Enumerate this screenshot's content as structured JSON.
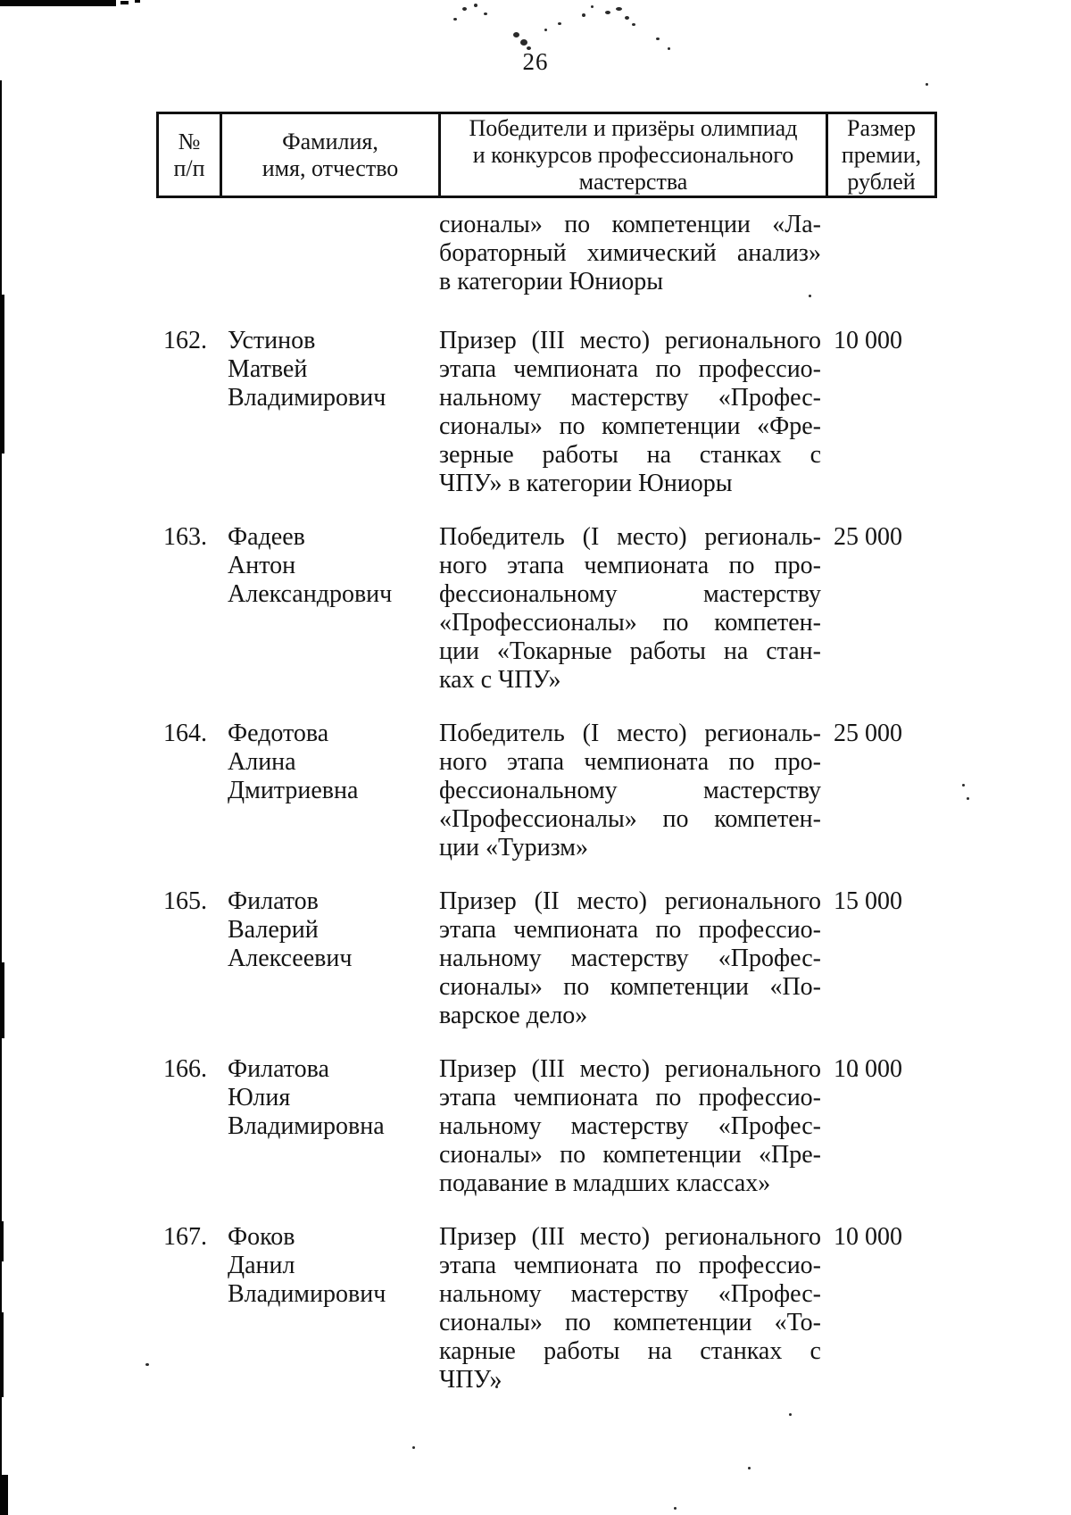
{
  "page": {
    "number": "26"
  },
  "colors": {
    "ink": "#141414",
    "paper": "#ffffff"
  },
  "table": {
    "header": {
      "col1_lines": [
        "№",
        "п/п"
      ],
      "col2_lines": [
        "Фамилия,",
        "имя, отчество"
      ],
      "col3_lines": [
        "Победители и призёры олимпиад",
        "и конкурсов профессионального",
        "мастерства"
      ],
      "col4_lines": [
        "Размер",
        "премии,",
        "рублей"
      ]
    },
    "carryover_lines": [
      "сионалы» по компетенции «Ла-",
      "бораторный химический анализ»",
      "в категории Юниоры"
    ],
    "rows": [
      {
        "num": "162.",
        "name_lines": [
          "Устинов",
          "Матвей",
          "Владимирович"
        ],
        "desc_lines": [
          "Призер (III место) регионального",
          "этапа чемпионата по профессио-",
          "нальному мастерству «Профес-",
          "сионалы» по компетенции «Фре-",
          "зерные работы на станках с",
          "ЧПУ» в категории Юниоры"
        ],
        "amount": "10 000"
      },
      {
        "num": "163.",
        "name_lines": [
          "Фадеев",
          "Антон",
          "Александрович"
        ],
        "desc_lines": [
          "Победитель (I место) региональ-",
          "ного этапа чемпионата по про-",
          "фессиональному мастерству",
          "«Профессионалы» по компетен-",
          "ции «Токарные работы на стан-",
          "ках с ЧПУ»"
        ],
        "amount": "25 000"
      },
      {
        "num": "164.",
        "name_lines": [
          "Федотова",
          "Алина",
          "Дмитриевна"
        ],
        "desc_lines": [
          "Победитель (I место) региональ-",
          "ного этапа чемпионата по про-",
          "фессиональному мастерству",
          "«Профессионалы» по компетен-",
          "ции «Туризм»"
        ],
        "amount": "25 000"
      },
      {
        "num": "165.",
        "name_lines": [
          "Филатов",
          "Валерий",
          "Алексеевич"
        ],
        "desc_lines": [
          "Призер (II место) регионального",
          "этапа чемпионата по профессио-",
          "нальному мастерству «Профес-",
          "сионалы» по компетенции «По-",
          "варское дело»"
        ],
        "amount": "15 000"
      },
      {
        "num": "166.",
        "name_lines": [
          "Филатова",
          "Юлия",
          "Владимировна"
        ],
        "desc_lines": [
          "Призер (III место) регионального",
          "этапа чемпионата по профессио-",
          "нальному мастерству «Профес-",
          "сионалы» по компетенции «Пре-",
          "подавание в младших классах»"
        ],
        "amount": "10 000"
      },
      {
        "num": "167.",
        "name_lines": [
          "Фоков",
          "Данил",
          "Владимирович"
        ],
        "desc_lines": [
          "Призер (III место) регионального",
          "этапа чемпионата по профессио-",
          "нальному мастерству «Профес-",
          "сионалы» по компетенции «То-",
          "карные работы на станках с",
          "ЧПУ»"
        ],
        "amount": "10 000"
      }
    ]
  }
}
